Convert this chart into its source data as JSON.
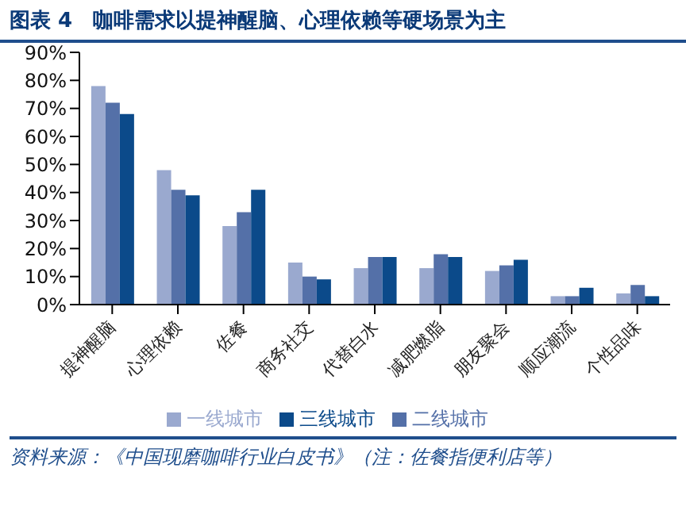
{
  "chart_data": {
    "type": "bar",
    "title": "图表 4　咖啡需求以提神醒脑、心理依赖等硬场景为主",
    "categories": [
      "提神醒脑",
      "心理依赖",
      "佐餐",
      "商务社交",
      "代替白水",
      "减肥燃脂",
      "朋友聚会",
      "顺应潮流",
      "个性品味"
    ],
    "series": [
      {
        "name": "一线城市",
        "color": "#9aa9cf",
        "values": [
          78,
          48,
          28,
          15,
          13,
          13,
          12,
          3,
          4
        ]
      },
      {
        "name": "二线城市",
        "color": "#5470a8",
        "values": [
          72,
          41,
          33,
          10,
          17,
          18,
          14,
          3,
          7
        ]
      },
      {
        "name": "三线城市",
        "color": "#0b4a8a",
        "values": [
          68,
          39,
          41,
          9,
          17,
          17,
          16,
          6,
          3
        ]
      }
    ],
    "ylim": [
      0,
      90
    ],
    "yticks": [
      {
        "value": 0,
        "label": "0%"
      },
      {
        "value": 10,
        "label": "10%"
      },
      {
        "value": 20,
        "label": "20%"
      },
      {
        "value": 30,
        "label": "30%"
      },
      {
        "value": 40,
        "label": "40%"
      },
      {
        "value": 50,
        "label": "50%"
      },
      {
        "value": 60,
        "label": "60%"
      },
      {
        "value": 70,
        "label": "70%"
      },
      {
        "value": 80,
        "label": "80%"
      },
      {
        "value": 90,
        "label": "90%"
      }
    ],
    "grid": false,
    "legend": "bottom",
    "annotations": [
      "资料来源：《中国现磨咖啡行业白皮书》（注：佐餐指便利店等）"
    ]
  }
}
